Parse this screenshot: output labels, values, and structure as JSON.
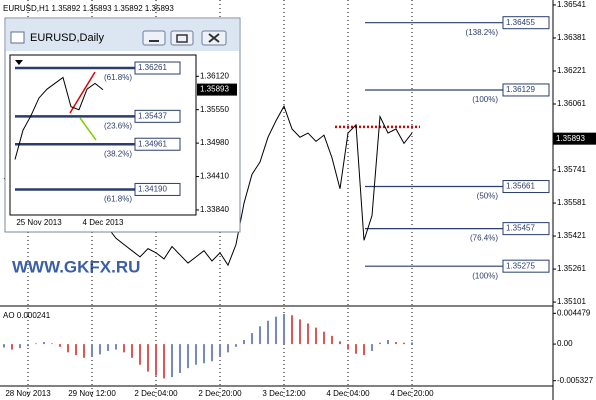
{
  "chart_data": [
    {
      "type": "line",
      "title": "EURUSD,H1 1.35892 1.35893 1.35892 1.35893",
      "categories": [
        null,
        null,
        null,
        "28 Nov 2013",
        null,
        null,
        null,
        null,
        null,
        null,
        null,
        "29 Nov 12:00",
        null,
        null,
        null,
        null,
        null,
        null,
        null,
        "2 Dec 04:00",
        null,
        null,
        null,
        null,
        null,
        null,
        null,
        "2 Dec 20:00",
        null,
        null,
        null,
        null,
        null,
        null,
        null,
        "3 Dec 12:00",
        null,
        null,
        null,
        null,
        null,
        null,
        null,
        "4 Dec 04:00",
        null,
        null,
        null,
        null,
        null,
        null,
        null,
        "4 Dec 20:00",
        null,
        null,
        null,
        null,
        null,
        null,
        null,
        null,
        null,
        null,
        null,
        null,
        null,
        null,
        null,
        null,
        null
      ],
      "values": [
        1.357,
        1.3568,
        1.3572,
        1.3565,
        1.356,
        1.3562,
        1.3558,
        1.3555,
        1.355,
        1.3552,
        1.3548,
        1.3545,
        1.3549,
        1.3546,
        1.3541,
        1.3538,
        1.3535,
        1.3532,
        1.3536,
        1.3534,
        1.3531,
        1.3537,
        1.3533,
        1.3529,
        1.3532,
        1.3535,
        1.353,
        1.3534,
        1.3528,
        1.3538,
        1.3558,
        1.3572,
        1.3578,
        1.359,
        1.3598,
        1.3605,
        1.3594,
        1.359,
        1.3592,
        1.3588,
        1.3591,
        1.358,
        1.3565,
        1.3592,
        1.3596,
        1.354,
        1.3552,
        1.36,
        1.3592,
        1.3594,
        1.3587,
        1.3592,
        null,
        null,
        null,
        null,
        null,
        null,
        null,
        null,
        null,
        null,
        null,
        null,
        null,
        null,
        null,
        null,
        null
      ],
      "color": "#000000",
      "ylim": [
        1.35082,
        1.36565
      ],
      "yticks": [
        1.36541,
        1.36381,
        1.36221,
        1.36061,
        1.35741,
        1.35581,
        1.35421,
        1.35261,
        1.35101
      ],
      "last_price": 1.35893,
      "grid": true,
      "levels": [
        {
          "name": "(138.2%)",
          "value": 1.36455
        },
        {
          "name": "(100%)",
          "value": 1.36129
        },
        {
          "name": "(50%)",
          "value": 1.35661
        },
        {
          "name": "(76.4%)",
          "value": 1.35457
        },
        {
          "name": "(100%)",
          "value": 1.35275
        }
      ],
      "marker_line": {
        "value": 1.3595,
        "color": "#e00000"
      },
      "watermark": "WWW.GKFX.RU"
    },
    {
      "type": "bar",
      "title": "AO 0.000241",
      "values": [
        -0.0005,
        -0.0008,
        -0.0006,
        -0.0003,
        0.0001,
        0.0003,
        0.0001,
        -0.0004,
        -0.0012,
        -0.0016,
        -0.002,
        -0.0018,
        -0.0015,
        -0.001,
        -0.0008,
        -0.0012,
        -0.002,
        -0.003,
        -0.004,
        -0.0046,
        -0.005,
        -0.0048,
        -0.0042,
        -0.0035,
        -0.003,
        -0.0028,
        -0.0025,
        -0.0018,
        -0.0012,
        -0.0004,
        0.0006,
        0.0016,
        0.0026,
        0.0034,
        0.004,
        0.0044,
        0.0042,
        0.0036,
        0.003,
        0.0024,
        0.0018,
        0.0012,
        0.0004,
        -0.0008,
        -0.0014,
        -0.0016,
        -0.001,
        0.0002,
        0.0006,
        0.0003,
        0.0002,
        0.000241,
        null,
        null,
        null,
        null,
        null,
        null,
        null,
        null,
        null,
        null,
        null,
        null,
        null,
        null,
        null,
        null,
        null
      ],
      "up_color": "#4a64a8",
      "down_color": "#d02020",
      "ylim": [
        -0.0061,
        0.0054
      ],
      "yticks": [
        0.004479,
        {
          "value": 0,
          "label": "0.00"
        },
        -0.005327
      ]
    },
    {
      "type": "line",
      "title": "EURUSD,Daily",
      "categories": [
        null,
        null,
        null,
        "25 Nov 2013",
        null,
        null,
        null,
        null,
        null,
        null,
        null,
        "4 Dec 2013"
      ],
      "values": [
        1.347,
        1.352,
        1.3545,
        1.3575,
        1.359,
        1.36,
        1.361,
        1.356,
        1.3555,
        1.359,
        1.36,
        1.3589
      ],
      "color": "#000000",
      "ylim": [
        1.33754,
        1.36483
      ],
      "yticks": [
        {
          "value": 1.3612,
          "label": "1.36120"
        },
        {
          "value": 1.3555,
          "label": "1.35550"
        },
        {
          "value": 1.3498,
          "label": "1.34980"
        },
        {
          "value": 1.3441,
          "label": "1.34410"
        },
        {
          "value": 1.3384,
          "label": "1.33840"
        }
      ],
      "last_price": 1.35893,
      "levels": [
        {
          "name": "(61.8%)",
          "value": 1.36261
        },
        {
          "name": "(23.6%)",
          "value": 1.35437
        },
        {
          "name": "(38.2%)",
          "value": 1.34961
        },
        {
          "name": "(61.8%)",
          "value": 1.3419,
          "label": "1.34190"
        }
      ]
    }
  ]
}
